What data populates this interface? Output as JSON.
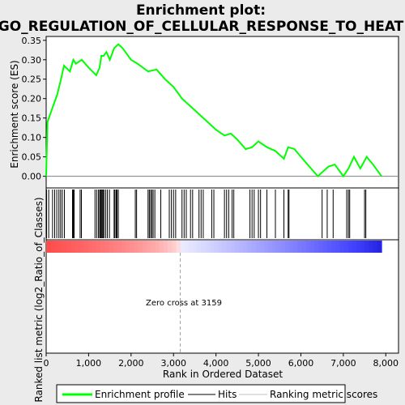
{
  "title_line1": "Enrichment plot:",
  "title_line2": "GO_REGULATION_OF_CELLULAR_RESPONSE_TO_HEAT",
  "ylabel_top": "Enrichment score (ES)",
  "ylabel_bottom": "Ranked list metric (log2_Ratio_of_Classes)",
  "xlabel": "Rank in Ordered Dataset",
  "annotation": "Zero cross at 3159",
  "legend": {
    "items": [
      {
        "label": "Enrichment profile",
        "color": "#00ff00"
      },
      {
        "label": "Hits",
        "color": "#000000"
      },
      {
        "label": "Ranking metric scores",
        "color": "#c0c0c0"
      }
    ]
  },
  "chart_data": {
    "type": "line",
    "title": "Enrichment plot: GO_REGULATION_OF_CELLULAR_RESPONSE_TO_HEAT",
    "xlabel": "Rank in Ordered Dataset",
    "ylabel": "Enrichment score (ES)",
    "xlim": [
      0,
      8300
    ],
    "ylim": [
      -0.03,
      0.36
    ],
    "x_ticks": [
      "0",
      "1,000",
      "2,000",
      "3,000",
      "4,000",
      "5,000",
      "6,000",
      "7,000",
      "8,000"
    ],
    "x_tick_values": [
      0,
      1000,
      2000,
      3000,
      4000,
      5000,
      6000,
      7000,
      8000
    ],
    "y_ticks": [
      "0.00",
      "0.05",
      "0.10",
      "0.15",
      "0.20",
      "0.25",
      "0.30",
      "0.35"
    ],
    "y_tick_values": [
      0,
      0.05,
      0.1,
      0.15,
      0.2,
      0.25,
      0.3,
      0.35
    ],
    "zero_cross": 3159,
    "series": [
      {
        "name": "Enrichment profile",
        "color": "#00ff00",
        "x": [
          0,
          30,
          160,
          260,
          350,
          420,
          560,
          640,
          700,
          840,
          1000,
          1180,
          1260,
          1300,
          1350,
          1420,
          1500,
          1600,
          1700,
          1800,
          2000,
          2150,
          2400,
          2600,
          2800,
          3000,
          3200,
          3400,
          3600,
          3800,
          4000,
          4200,
          4350,
          4500,
          4700,
          4850,
          5000,
          5200,
          5400,
          5600,
          5700,
          5850,
          6000,
          6200,
          6400,
          6550,
          6650,
          6800,
          7000,
          7120,
          7250,
          7400,
          7550,
          7700,
          7900
        ],
        "y": [
          0.0,
          0.14,
          0.18,
          0.21,
          0.25,
          0.285,
          0.27,
          0.3,
          0.29,
          0.3,
          0.28,
          0.26,
          0.28,
          0.31,
          0.31,
          0.32,
          0.3,
          0.33,
          0.34,
          0.33,
          0.3,
          0.29,
          0.27,
          0.275,
          0.25,
          0.23,
          0.2,
          0.18,
          0.16,
          0.14,
          0.12,
          0.105,
          0.11,
          0.095,
          0.07,
          0.075,
          0.09,
          0.075,
          0.065,
          0.045,
          0.075,
          0.07,
          0.05,
          0.025,
          0.0,
          0.015,
          0.025,
          0.03,
          0.0,
          0.02,
          0.05,
          0.02,
          0.05,
          0.03,
          0.0
        ]
      }
    ],
    "hits": [
      10,
      60,
      150,
      200,
      250,
      300,
      340,
      380,
      430,
      620,
      640,
      660,
      800,
      830,
      1150,
      1190,
      1230,
      1260,
      1280,
      1300,
      1320,
      1340,
      1360,
      1400,
      1440,
      1490,
      1600,
      1620,
      1650,
      1670,
      1700,
      2100,
      2130,
      2400,
      2430,
      2460,
      2490,
      2520,
      2560,
      2700,
      2900,
      2950,
      3000,
      3050,
      3200,
      3250,
      3300,
      3400,
      3450,
      3600,
      3650,
      3700,
      3900,
      3950,
      4200,
      4250,
      4300,
      4380,
      4420,
      4800,
      4850,
      4900,
      5000,
      5050,
      5200,
      5400,
      5600,
      5700,
      5720,
      6500,
      6620,
      6760,
      7080,
      7120,
      7150,
      7500,
      7530
    ]
  }
}
